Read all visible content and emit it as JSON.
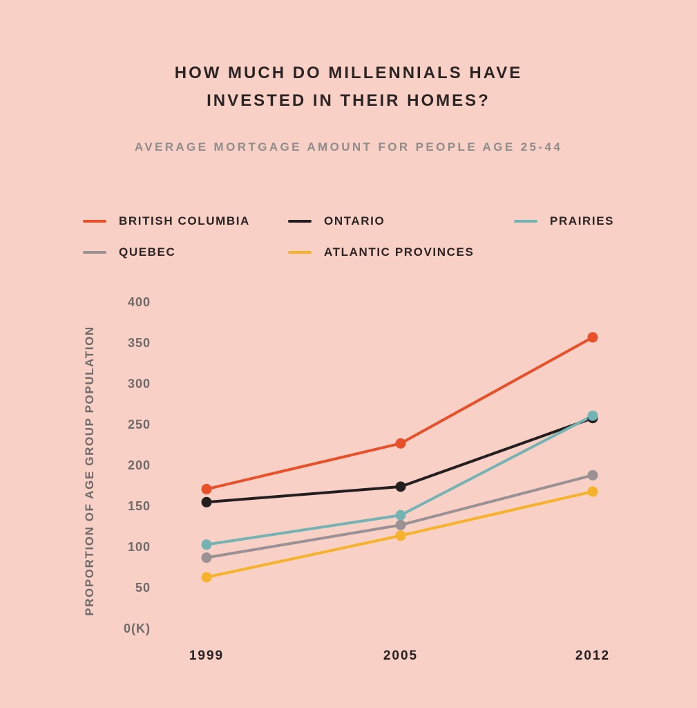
{
  "chart_data": {
    "type": "line",
    "title_lines": [
      "HOW MUCH DO MILLENNIALS HAVE",
      "INVESTED IN THEIR HOMES?"
    ],
    "subtitle": "AVERAGE MORTGAGE AMOUNT FOR PEOPLE AGE 25-44",
    "xlabel": "",
    "ylabel": "PROPORTION OF AGE GROUP POPULATION",
    "x": [
      "1999",
      "2005",
      "2012"
    ],
    "ylim": [
      0,
      400
    ],
    "yticks": [
      0,
      50,
      100,
      150,
      200,
      250,
      300,
      350,
      400
    ],
    "ytick_labels": [
      "0(K)",
      "50",
      "100",
      "150",
      "200",
      "250",
      "300",
      "350",
      "400"
    ],
    "grid": false,
    "legend_position": "top",
    "series": [
      {
        "name": "BRITISH COLUMBIA",
        "color": "#e8502a",
        "values": [
          170,
          226,
          356
        ]
      },
      {
        "name": "ONTARIO",
        "color": "#231f20",
        "values": [
          154,
          173,
          257
        ]
      },
      {
        "name": "PRAIRIES",
        "color": "#74b3b3",
        "values": [
          102,
          138,
          260
        ]
      },
      {
        "name": "QUEBEC",
        "color": "#999193",
        "values": [
          86,
          126,
          187
        ]
      },
      {
        "name": "ATLANTIC PROVINCES",
        "color": "#f6b22a",
        "values": [
          62,
          113,
          167
        ]
      }
    ]
  }
}
